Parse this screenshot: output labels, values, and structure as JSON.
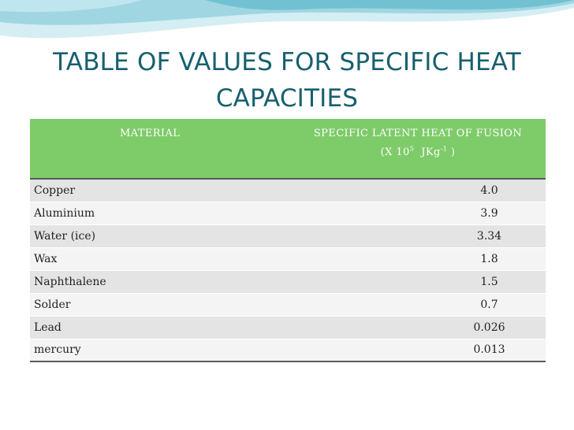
{
  "slide": {
    "title_line1": "TABLE OF VALUES FOR SPECIFIC HEAT",
    "title_line2": "CAPACITIES"
  },
  "table": {
    "header": {
      "material": "MATERIAL",
      "heat_line1": "SPECIFIC LATENT HEAT OF FUSION",
      "heat_unit_prefix": "(X 10",
      "heat_unit_exp": "5",
      "heat_unit_mid": "  JKg",
      "heat_unit_exp2": "-1",
      "heat_unit_suffix": " )"
    },
    "rows": [
      {
        "material": "Copper",
        "value": "4.0"
      },
      {
        "material": "Aluminium",
        "value": "3.9"
      },
      {
        "material": "Water (ice)",
        "value": "3.34"
      },
      {
        "material": "Wax",
        "value": "1.8"
      },
      {
        "material": "Naphthalene",
        "value": "1.5"
      },
      {
        "material": "Solder",
        "value": "0.7"
      },
      {
        "material": "Lead",
        "value": "0.026"
      },
      {
        "material": "mercury",
        "value": "0.013"
      }
    ]
  },
  "colors": {
    "title": "#17606f",
    "header_bg": "#7ecb69",
    "wave_light": "#d4eef3",
    "wave_mid": "#9fd6e2",
    "wave_dark": "#5fb8cc"
  }
}
